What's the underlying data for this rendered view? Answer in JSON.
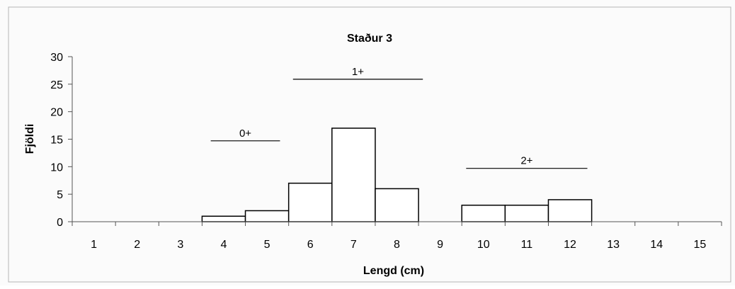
{
  "chart_data": {
    "type": "bar",
    "title": "Staður 3",
    "xlabel": "Lengd (cm)",
    "ylabel": "Fjöldi",
    "categories": [
      "1",
      "2",
      "3",
      "4",
      "5",
      "6",
      "7",
      "8",
      "9",
      "10",
      "11",
      "12",
      "13",
      "14",
      "15"
    ],
    "values": [
      0,
      0,
      0,
      1,
      2,
      7,
      17,
      6,
      0,
      3,
      3,
      4,
      0,
      0,
      0
    ],
    "ylim": [
      0,
      30
    ],
    "yticks": [
      "0",
      "5",
      "10",
      "15",
      "20",
      "25",
      "30"
    ],
    "grid": false,
    "legend": "none",
    "annotations": [
      {
        "label": "0+",
        "x_from": 3.7,
        "x_to": 5.3,
        "y": 14.7
      },
      {
        "label": "1+",
        "x_from": 5.6,
        "x_to": 8.6,
        "y": 25.9
      },
      {
        "label": "2+",
        "x_from": 9.6,
        "x_to": 12.4,
        "y": 9.7
      }
    ],
    "colors": {
      "bar_fill": "#ffffff",
      "bar_stroke": "#000000",
      "axis": "#555555"
    }
  }
}
